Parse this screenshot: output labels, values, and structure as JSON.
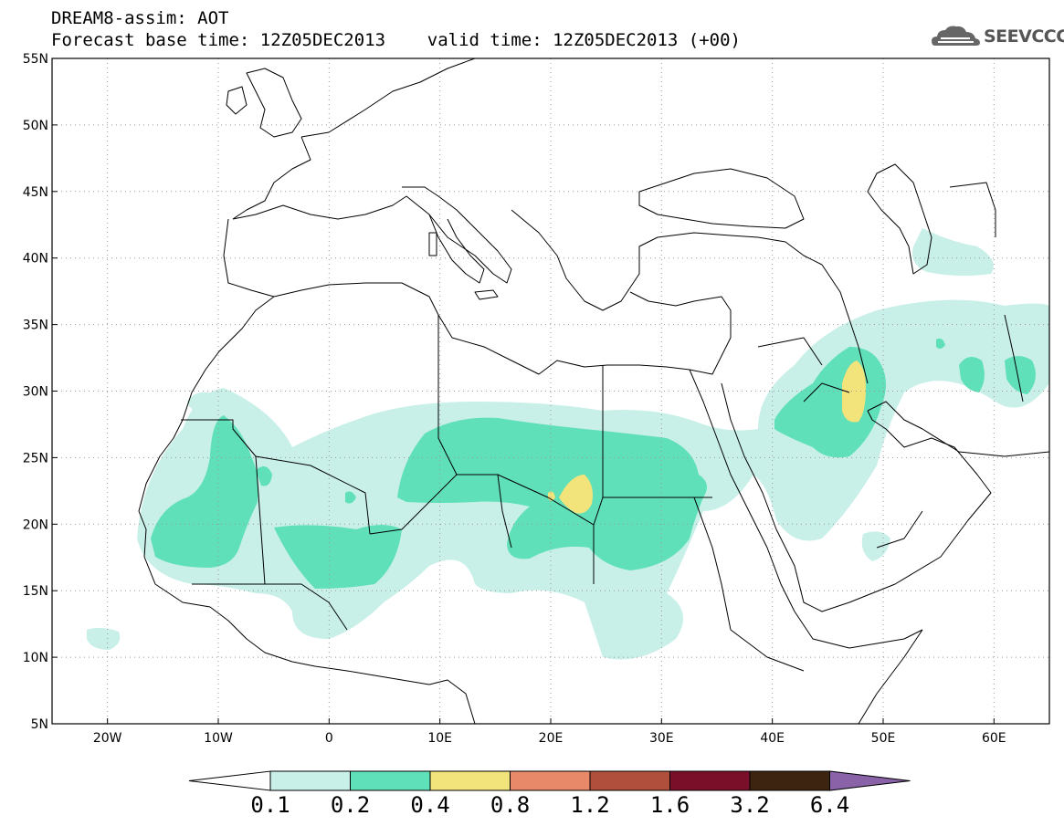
{
  "header": {
    "title_line1": "DREAM8-assim: AOT",
    "title_line2": "Forecast base time: 12Z05DEC2013    valid time: 12Z05DEC2013 (+00)",
    "logo_text": "SEEVCCC"
  },
  "map": {
    "lon_range": [
      -25,
      65
    ],
    "lat_range": [
      5,
      55
    ],
    "lon_ticks": [
      "20W",
      "10W",
      "0",
      "10E",
      "20E",
      "30E",
      "40E",
      "50E",
      "60E"
    ],
    "lat_ticks": [
      "5N",
      "10N",
      "15N",
      "20N",
      "25N",
      "30N",
      "35N",
      "40N",
      "45N",
      "50N",
      "55N"
    ],
    "grid": "dotted",
    "colors": {
      "level_0.1": "#c8f0e8",
      "level_0.2": "#5fe0b8",
      "level_0.4": "#f2e37a",
      "level_0.8": "#e88a6a",
      "level_1.2": "#b0503c",
      "level_1.6": "#7a0f2a",
      "level_3.2": "#3d2410",
      "level_6.4": "#8a62a8"
    }
  },
  "colorbar": {
    "labels": [
      "0.1",
      "0.2",
      "0.4",
      "0.8",
      "1.2",
      "1.6",
      "3.2",
      "6.4"
    ],
    "colors": [
      "#c8f0e8",
      "#5fe0b8",
      "#f2e37a",
      "#e88a6a",
      "#b0503c",
      "#7a0f2a",
      "#3d2410"
    ],
    "over_color": "#8a62a8",
    "under_color": "#ffffff"
  }
}
